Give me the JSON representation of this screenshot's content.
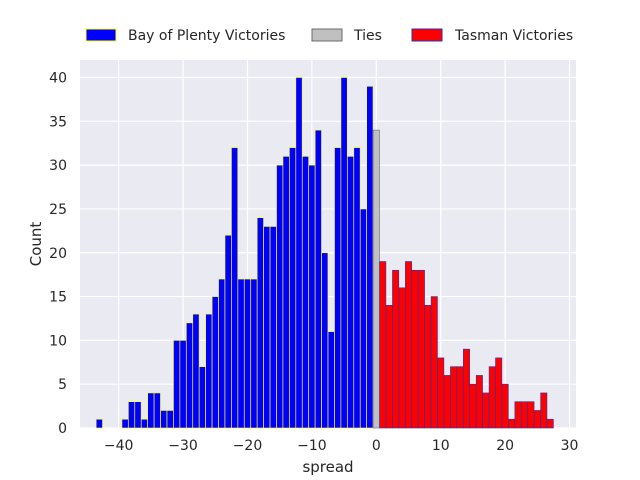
{
  "chart_data": {
    "type": "bar",
    "title": "",
    "xlabel": "spread",
    "ylabel": "Count",
    "xlim": [
      -46,
      31
    ],
    "ylim": [
      0,
      42
    ],
    "xticks": [
      -40,
      -30,
      -20,
      -10,
      0,
      10,
      20,
      30
    ],
    "yticks": [
      0,
      5,
      10,
      15,
      20,
      25,
      30,
      35,
      40
    ],
    "grid": true,
    "legend_position": "top",
    "series": [
      {
        "name": "Bay of Plenty Victories",
        "color": "#0000ff",
        "edge_color": "#ffff00",
        "x": [
          -43,
          -42,
          -41,
          -40,
          -39,
          -38,
          -37,
          -36,
          -35,
          -34,
          -33,
          -32,
          -31,
          -30,
          -29,
          -28,
          -27,
          -26,
          -25,
          -24,
          -23,
          -22,
          -21,
          -20,
          -19,
          -18,
          -17,
          -16,
          -15,
          -14,
          -13,
          -12,
          -11,
          -10,
          -9,
          -8,
          -7,
          -6,
          -5,
          -4,
          -3,
          -2,
          -1
        ],
        "values": [
          1,
          0,
          0,
          0,
          1,
          3,
          3,
          1,
          4,
          4,
          2,
          2,
          10,
          10,
          12,
          13,
          7,
          13,
          15,
          17,
          22,
          32,
          17,
          17,
          17,
          24,
          23,
          23,
          30,
          31,
          32,
          40,
          31,
          30,
          34,
          20,
          11,
          32,
          40,
          31,
          32,
          25,
          39
        ]
      },
      {
        "name": "Ties",
        "color": "#c0c0c0",
        "edge_color": "#6b6b6b",
        "x": [
          0
        ],
        "values": [
          34
        ]
      },
      {
        "name": "Tasman Victories",
        "color": "#ff0000",
        "edge_color": "#3030b0",
        "x": [
          1,
          2,
          3,
          4,
          5,
          6,
          7,
          8,
          9,
          10,
          11,
          12,
          13,
          14,
          15,
          16,
          17,
          18,
          19,
          20,
          21,
          22,
          23,
          24,
          25,
          26,
          27
        ],
        "values": [
          19,
          14,
          18,
          16,
          19,
          18,
          18,
          14,
          15,
          8,
          6,
          7,
          7,
          9,
          5,
          6,
          4,
          7,
          8,
          5,
          1,
          3,
          3,
          3,
          2,
          4,
          1
        ]
      }
    ]
  }
}
